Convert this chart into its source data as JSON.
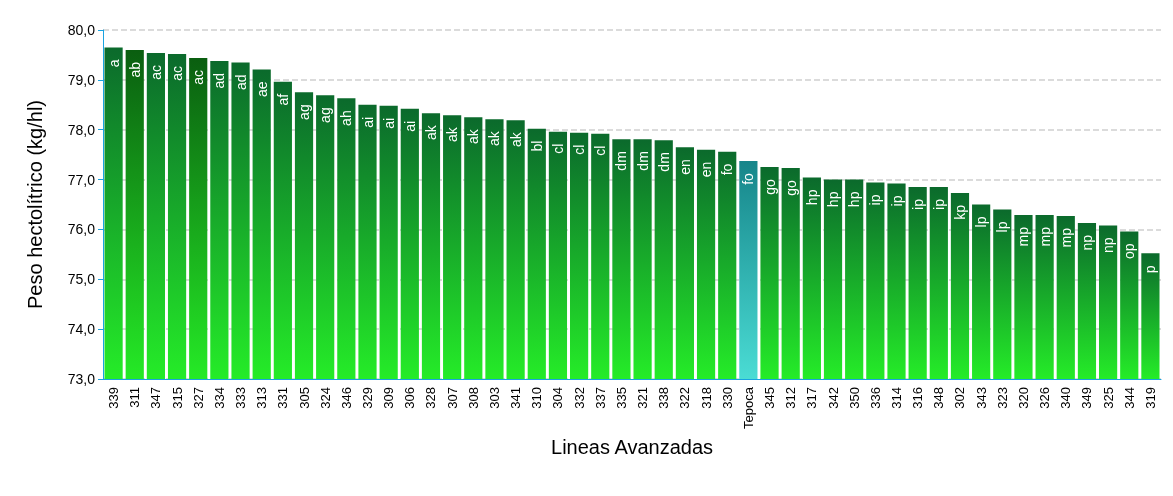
{
  "chart_data": {
    "type": "bar",
    "xlabel": "Lineas Avanzadas",
    "ylabel": "Peso hectolítrico (kg/hl)",
    "categories": [
      "339",
      "311",
      "347",
      "315",
      "327",
      "334",
      "333",
      "313",
      "331",
      "305",
      "324",
      "346",
      "329",
      "309",
      "306",
      "328",
      "307",
      "308",
      "303",
      "341",
      "310",
      "304",
      "332",
      "337",
      "335",
      "321",
      "338",
      "322",
      "318",
      "330",
      "Tepoca",
      "345",
      "312",
      "317",
      "342",
      "350",
      "336",
      "314",
      "316",
      "348",
      "302",
      "343",
      "323",
      "320",
      "326",
      "340",
      "349",
      "325",
      "344",
      "319"
    ],
    "values": [
      79.65,
      79.6,
      79.54,
      79.52,
      79.44,
      79.38,
      79.35,
      79.21,
      78.96,
      78.75,
      78.69,
      78.63,
      78.5,
      78.48,
      78.42,
      78.33,
      78.29,
      78.25,
      78.21,
      78.19,
      78.02,
      77.96,
      77.94,
      77.92,
      77.81,
      77.81,
      77.79,
      77.65,
      77.6,
      77.56,
      77.37,
      77.25,
      77.23,
      77.04,
      77.0,
      77.0,
      76.94,
      76.92,
      76.85,
      76.85,
      76.73,
      76.5,
      76.4,
      76.29,
      76.29,
      76.27,
      76.13,
      76.08,
      75.96,
      75.52
    ],
    "value_labels": [
      "a",
      "ab",
      "ac",
      "ac",
      "ac",
      "ad",
      "ad",
      "ae",
      "af",
      "ag",
      "ag",
      "ah",
      "ai",
      "ai",
      "ai",
      "ak",
      "ak",
      "ak",
      "ak",
      "ak",
      "bl",
      "cl",
      "cl",
      "cl",
      "dm",
      "dm",
      "dm",
      "en",
      "en",
      "fo",
      "fo",
      "go",
      "go",
      "hp",
      "hp",
      "hp",
      "ip",
      "ip",
      "ip",
      "ip",
      "kp",
      "lp",
      "lp",
      "mp",
      "mp",
      "mp",
      "np",
      "np",
      "op",
      "p"
    ],
    "colors": [
      "#0b6a2c",
      "#0a5e10",
      "#0b6a2c",
      "#0b6a2c",
      "#0a5e10",
      "#0b6a2c",
      "#0b6a2c",
      "#0b6a2c",
      "#0b6a2c",
      "#0b6a2c",
      "#0b6a2c",
      "#0b6a2c",
      "#0b6a2c",
      "#0b6a2c",
      "#0b6a2c",
      "#0b6a2c",
      "#0b6a2c",
      "#0b6a2c",
      "#0b6a2c",
      "#0b6a2c",
      "#0b6a2c",
      "#0b6a2c",
      "#0b6a2c",
      "#0b6a2c",
      "#0b6a2c",
      "#0b6a2c",
      "#0b6a2c",
      "#0b6a2c",
      "#0b6a2c",
      "#0b6a2c",
      "#16858a",
      "#0b6a2c",
      "#0b6a2c",
      "#0b6a2c",
      "#0b6a2c",
      "#0b6a2c",
      "#0b6a2c",
      "#0b6a2c",
      "#0b6a2c",
      "#0b6a2c",
      "#0b6a2c",
      "#0b6a2c",
      "#0b6a2c",
      "#0b6a2c",
      "#0b6a2c",
      "#0b6a2c",
      "#0b6a2c",
      "#0b6a2c",
      "#0b6a2c",
      "#0b6a2c"
    ],
    "ylim": [
      73,
      80
    ],
    "yticks": [
      {
        "value": 73,
        "label": "73,0"
      },
      {
        "value": 74,
        "label": "74,0"
      },
      {
        "value": 75,
        "label": "75,0"
      },
      {
        "value": 76,
        "label": "76,0"
      },
      {
        "value": 77,
        "label": "77,0"
      },
      {
        "value": 78,
        "label": "78,0"
      },
      {
        "value": 79,
        "label": "79,0"
      },
      {
        "value": 80,
        "label": "80,0"
      }
    ],
    "grid": "y"
  }
}
